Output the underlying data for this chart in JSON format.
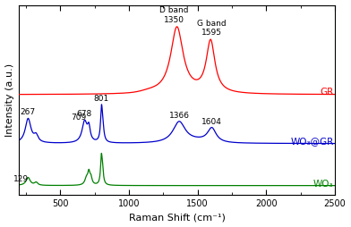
{
  "xlabel": "Raman Shift (cm⁻¹)",
  "ylabel": "Intensity (a.u.)",
  "xlim": [
    200,
    2500
  ],
  "colors": {
    "GR": "#ff0000",
    "WO3GR": "#0000cc",
    "WO3": "#008000"
  },
  "labels": {
    "GR": "GR",
    "WO3GR": "WO₃@GR",
    "WO3": "WO₃"
  },
  "offsets": {
    "GR": 5.5,
    "WO3GR": 2.8,
    "WO3": 0.5
  },
  "scales": {
    "GR": 3.8,
    "WO3GR": 2.2,
    "WO3": 1.8
  },
  "anno_fontsize": 6.5,
  "label_fontsize": 7.5,
  "axis_fontsize": 8
}
